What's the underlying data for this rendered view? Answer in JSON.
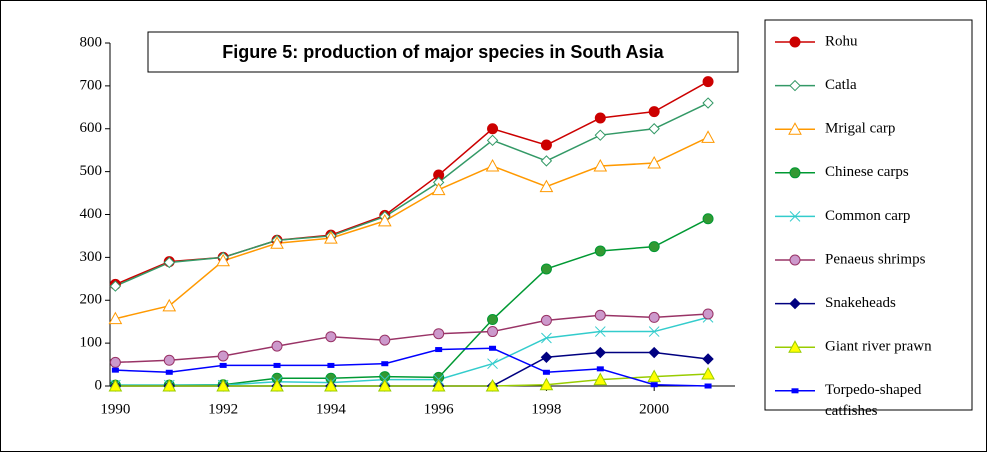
{
  "chart_data": {
    "type": "line",
    "title": "Figure 5: production of major species in South Asia",
    "x": [
      1990,
      1991,
      1992,
      1993,
      1994,
      1995,
      1996,
      1997,
      1998,
      1999,
      2000,
      2001
    ],
    "xlim": [
      1989.9,
      2001.5
    ],
    "xticks": [
      1990,
      1992,
      1994,
      1996,
      1998,
      2000
    ],
    "ylim": [
      0,
      800
    ],
    "yticks": [
      0,
      100,
      200,
      300,
      400,
      500,
      600,
      700,
      800
    ],
    "legend": "right",
    "series": [
      {
        "name": "Rohu",
        "color": "#cc0000",
        "marker": "circle",
        "marker_fill": "#cc0000",
        "values": [
          237,
          290,
          300,
          340,
          352,
          398,
          492,
          600,
          562,
          625,
          640,
          710
        ]
      },
      {
        "name": "Catla",
        "color": "#339966",
        "marker": "diamond",
        "marker_fill": "#ffffff",
        "values": [
          233,
          288,
          300,
          340,
          350,
          395,
          475,
          573,
          525,
          585,
          600,
          660
        ]
      },
      {
        "name": "Mrigal carp",
        "color": "#ff9900",
        "marker": "triangle",
        "marker_fill": "#ffffff",
        "values": [
          157,
          187,
          292,
          333,
          345,
          385,
          458,
          513,
          465,
          513,
          520,
          580
        ]
      },
      {
        "name": "Chinese carps",
        "color": "#009933",
        "marker": "circle",
        "marker_fill": "#339933",
        "values": [
          2,
          2,
          3,
          18,
          18,
          22,
          20,
          155,
          273,
          315,
          325,
          390
        ]
      },
      {
        "name": "Common carp",
        "color": "#33cccc",
        "marker": "x",
        "marker_fill": "#33cccc",
        "values": [
          2,
          2,
          2,
          10,
          8,
          15,
          15,
          52,
          112,
          127,
          127,
          160
        ]
      },
      {
        "name": "Penaeus shrimps",
        "color": "#993366",
        "marker": "circle",
        "marker_fill": "#cc99cc",
        "values": [
          55,
          60,
          70,
          93,
          115,
          107,
          122,
          127,
          153,
          165,
          160,
          168
        ]
      },
      {
        "name": "Snakeheads",
        "color": "#000080",
        "marker": "diamond",
        "marker_fill": "#000080",
        "values": [
          0,
          0,
          0,
          0,
          0,
          0,
          0,
          0,
          67,
          78,
          78,
          63
        ]
      },
      {
        "name": "Giant river prawn",
        "color": "#99cc00",
        "marker": "triangle",
        "marker_fill": "#ffff00",
        "values": [
          0,
          0,
          0,
          0,
          0,
          0,
          0,
          0,
          3,
          15,
          22,
          28
        ]
      },
      {
        "name": "Torpedo-shaped catfishes",
        "color": "#0000ff",
        "marker": "square",
        "marker_fill": "#0000ff",
        "values": [
          37,
          32,
          48,
          48,
          48,
          52,
          85,
          88,
          32,
          40,
          3,
          0
        ]
      }
    ]
  }
}
